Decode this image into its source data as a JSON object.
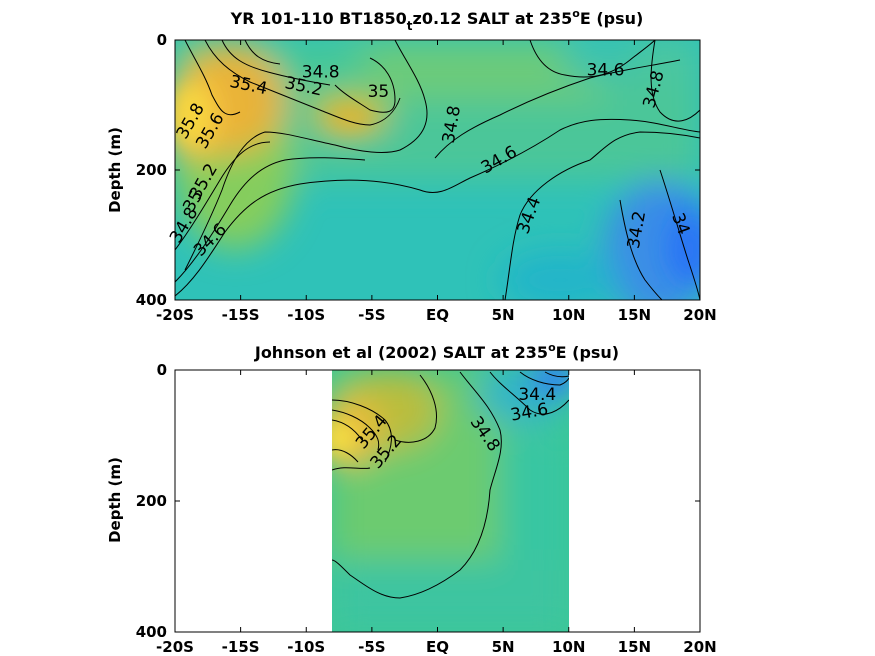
{
  "chart_data": [
    {
      "type": "contour",
      "title": "YR 101-110 BT1850_tz0.12 SALT at 235°E (psu)",
      "title_parts": {
        "pre": "YR 101-110 BT1850",
        "sub": "t",
        "mid": "z0.12 SALT at 235",
        "sup": "o",
        "post": "E (psu)"
      },
      "ylabel": "Depth (m)",
      "xlabel": "",
      "x_ticks": [
        "-20S",
        "-15S",
        "-10S",
        "-5S",
        "EQ",
        "5N",
        "10N",
        "15N",
        "20N"
      ],
      "x_tick_values": [
        -20,
        -15,
        -10,
        -5,
        0,
        5,
        10,
        15,
        20
      ],
      "y_ticks": [
        "0",
        "200",
        "400"
      ],
      "y_tick_values": [
        0,
        200,
        400
      ],
      "xlim": [
        -20,
        20
      ],
      "ylim": [
        400,
        0
      ],
      "data_extent": {
        "x": [
          -20,
          20
        ],
        "y": [
          0,
          400
        ]
      },
      "contour_labels": [
        {
          "text": "34.8",
          "x": -8.9,
          "y": 50,
          "angle": 0
        },
        {
          "text": "35.4",
          "x": -14.4,
          "y": 70,
          "angle": 12
        },
        {
          "text": "35.2",
          "x": -10.2,
          "y": 72,
          "angle": 12
        },
        {
          "text": "35",
          "x": -4.5,
          "y": 80,
          "angle": 0
        },
        {
          "text": "34.6",
          "x": 12.8,
          "y": 47,
          "angle": 0
        },
        {
          "text": "34.8",
          "x": 16.5,
          "y": 76,
          "angle": -75
        },
        {
          "text": "35.8",
          "x": -18.8,
          "y": 125,
          "angle": -60
        },
        {
          "text": "35.6",
          "x": -17.3,
          "y": 140,
          "angle": -60
        },
        {
          "text": "34.8",
          "x": 1.1,
          "y": 130,
          "angle": -80
        },
        {
          "text": "34.6",
          "x": 4.7,
          "y": 185,
          "angle": -30
        },
        {
          "text": "35.2",
          "x": -17.8,
          "y": 218,
          "angle": -60
        },
        {
          "text": "35",
          "x": -18.6,
          "y": 248,
          "angle": -60
        },
        {
          "text": "34.8",
          "x": -19.3,
          "y": 285,
          "angle": -60
        },
        {
          "text": "34.6",
          "x": -17.3,
          "y": 308,
          "angle": -45
        },
        {
          "text": "34.4",
          "x": 7.0,
          "y": 270,
          "angle": -70
        },
        {
          "text": "34.2",
          "x": 15.2,
          "y": 292,
          "angle": -80
        },
        {
          "text": "34",
          "x": 18.5,
          "y": 283,
          "angle": 70
        }
      ]
    },
    {
      "type": "contour",
      "title": "Johnson et al (2002) SALT at 235°E (psu)",
      "title_parts": {
        "pre": "Johnson et al (2002) SALT at 235",
        "sup": "o",
        "post": "E (psu)"
      },
      "ylabel": "Depth (m)",
      "xlabel": "",
      "x_ticks": [
        "-20S",
        "-15S",
        "-10S",
        "-5S",
        "EQ",
        "5N",
        "10N",
        "15N",
        "20N"
      ],
      "x_tick_values": [
        -20,
        -15,
        -10,
        -5,
        0,
        5,
        10,
        15,
        20
      ],
      "y_ticks": [
        "0",
        "200",
        "400"
      ],
      "y_tick_values": [
        0,
        200,
        400
      ],
      "xlim": [
        -20,
        20
      ],
      "ylim": [
        400,
        0
      ],
      "data_extent": {
        "x": [
          -8,
          10
        ],
        "y": [
          0,
          400
        ]
      },
      "contour_labels": [
        {
          "text": "34.4",
          "x": 7.6,
          "y": 38,
          "angle": 0
        },
        {
          "text": "34.6",
          "x": 7.0,
          "y": 65,
          "angle": -10
        },
        {
          "text": "35.4",
          "x": -5.0,
          "y": 95,
          "angle": -50
        },
        {
          "text": "35.2",
          "x": -3.9,
          "y": 125,
          "angle": -50
        },
        {
          "text": "34.8",
          "x": 3.6,
          "y": 98,
          "angle": 55
        }
      ]
    }
  ]
}
